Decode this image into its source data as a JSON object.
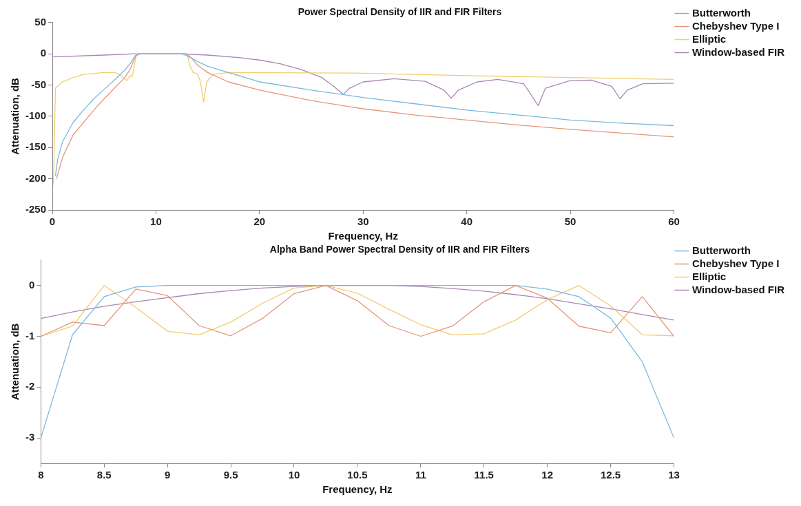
{
  "chart_data": [
    {
      "type": "line",
      "title": "Power Spectral Density of IIR and FIR Filters",
      "xlabel": "Frequency, Hz",
      "ylabel": "Attenuation, dB",
      "xlim": [
        0,
        60
      ],
      "ylim": [
        -250,
        50
      ],
      "xticks": [
        0,
        10,
        20,
        30,
        40,
        50,
        60
      ],
      "yticks": [
        -250,
        -200,
        -150,
        -100,
        -50,
        0,
        50
      ],
      "legend": "right",
      "marker": "none",
      "line_style": "solid",
      "series": [
        {
          "name": "Butterworth",
          "color": "#7ab8de",
          "x": [
            0.3,
            0.5,
            1,
            2,
            3,
            4,
            5,
            6,
            7,
            7.5,
            8,
            8.5,
            10,
            12.5,
            13,
            14,
            15,
            17,
            20,
            25,
            30,
            35,
            40,
            45,
            50,
            55,
            60
          ],
          "values": [
            -195,
            -170,
            -140,
            -110,
            -90,
            -72,
            -57,
            -42,
            -26,
            -16,
            -3,
            0,
            0,
            0,
            -3,
            -12,
            -20,
            -30,
            -45,
            -58,
            -70,
            -80,
            -90,
            -98,
            -106,
            -111,
            -115
          ]
        },
        {
          "name": "Chebyshev Type I",
          "color": "#e5967c",
          "x": [
            0.4,
            1,
            2,
            3,
            4,
            5,
            6,
            7,
            7.5,
            8,
            8.3,
            13,
            13.5,
            14,
            15,
            17,
            20,
            25,
            30,
            35,
            40,
            45,
            50,
            55,
            60
          ],
          "values": [
            -200,
            -165,
            -130,
            -110,
            -90,
            -72,
            -55,
            -38,
            -25,
            -5,
            0,
            0,
            -8,
            -18,
            -30,
            -45,
            -58,
            -75,
            -88,
            -98,
            -106,
            -114,
            -121,
            -127,
            -133
          ]
        },
        {
          "name": "Elliptic",
          "color": "#f2cd70",
          "x": [
            0.1,
            0.3,
            1,
            2,
            3,
            5,
            6,
            6.5,
            7,
            7.2,
            7.5,
            7.7,
            7.9,
            8.1,
            13,
            13.3,
            13.6,
            14,
            14.3,
            14.6,
            14.9,
            15.5,
            17,
            30,
            40,
            50,
            60
          ],
          "values": [
            -210,
            -55,
            -45,
            -38,
            -33,
            -30,
            -30,
            -33,
            -40,
            -43,
            -35,
            -37,
            -20,
            0,
            0,
            -20,
            -30,
            -32,
            -45,
            -78,
            -45,
            -33,
            -30,
            -31,
            -35,
            -38,
            -41
          ]
        },
        {
          "name": "Window-based FIR",
          "color": "#a887b5",
          "x": [
            0,
            5,
            8,
            12,
            15,
            18,
            20,
            22,
            24,
            26,
            27,
            28.1,
            28.7,
            30,
            33,
            36,
            37.8,
            38.5,
            39.2,
            41,
            43,
            45.5,
            46.9,
            47.6,
            50,
            52,
            54,
            54.8,
            55.5,
            57,
            60
          ],
          "values": [
            -5,
            -2,
            0,
            0,
            -2,
            -6,
            -10,
            -16,
            -25,
            -38,
            -50,
            -65,
            -55,
            -45,
            -40,
            -44,
            -58,
            -71,
            -58,
            -45,
            -41,
            -48,
            -83,
            -55,
            -43,
            -42,
            -52,
            -72,
            -58,
            -48,
            -47
          ]
        }
      ]
    },
    {
      "type": "line",
      "title": "Alpha Band Power Spectral Density of IIR and FIR Filters",
      "xlabel": "Frequency, Hz",
      "ylabel": "Attenuation, dB",
      "xlim": [
        8,
        13
      ],
      "ylim": [
        -3.5,
        0.5
      ],
      "xticks": [
        8,
        8.5,
        9,
        9.5,
        10,
        10.5,
        11,
        11.5,
        12,
        12.5,
        13
      ],
      "yticks": [
        -3,
        -2,
        -1,
        0
      ],
      "legend": "right",
      "marker": "none",
      "line_style": "solid",
      "x": [
        8,
        8.25,
        8.5,
        8.75,
        9,
        9.25,
        9.5,
        9.75,
        10,
        10.25,
        10.5,
        10.75,
        11,
        11.25,
        11.5,
        11.75,
        12,
        12.25,
        12.5,
        12.75,
        13
      ],
      "series": [
        {
          "name": "Butterworth",
          "color": "#7ab8de",
          "values": [
            -3,
            -0.97,
            -0.22,
            -0.03,
            0,
            0,
            0,
            0,
            0,
            0,
            0,
            0,
            0,
            0,
            0,
            0,
            -0.07,
            -0.22,
            -0.64,
            -1.5,
            -3
          ]
        },
        {
          "name": "Chebyshev Type I",
          "color": "#e5967c",
          "values": [
            -1,
            -0.72,
            -0.79,
            -0.07,
            -0.2,
            -0.79,
            -0.99,
            -0.65,
            -0.16,
            0,
            -0.3,
            -0.79,
            -1,
            -0.8,
            -0.32,
            0,
            -0.25,
            -0.8,
            -0.93,
            -0.22,
            -1
          ]
        },
        {
          "name": "Elliptic",
          "color": "#f2cd70",
          "values": [
            -1,
            -0.8,
            0,
            -0.43,
            -0.9,
            -0.97,
            -0.72,
            -0.35,
            -0.05,
            0,
            -0.15,
            -0.47,
            -0.77,
            -0.97,
            -0.95,
            -0.68,
            -0.28,
            0,
            -0.4,
            -0.97,
            -0.99
          ]
        },
        {
          "name": "Window-based FIR",
          "color": "#a887b5",
          "values": [
            -0.65,
            -0.52,
            -0.41,
            -0.32,
            -0.24,
            -0.16,
            -0.1,
            -0.05,
            -0.02,
            0,
            0,
            0,
            -0.02,
            -0.06,
            -0.11,
            -0.18,
            -0.26,
            -0.36,
            -0.46,
            -0.57,
            -0.68
          ]
        }
      ]
    }
  ]
}
